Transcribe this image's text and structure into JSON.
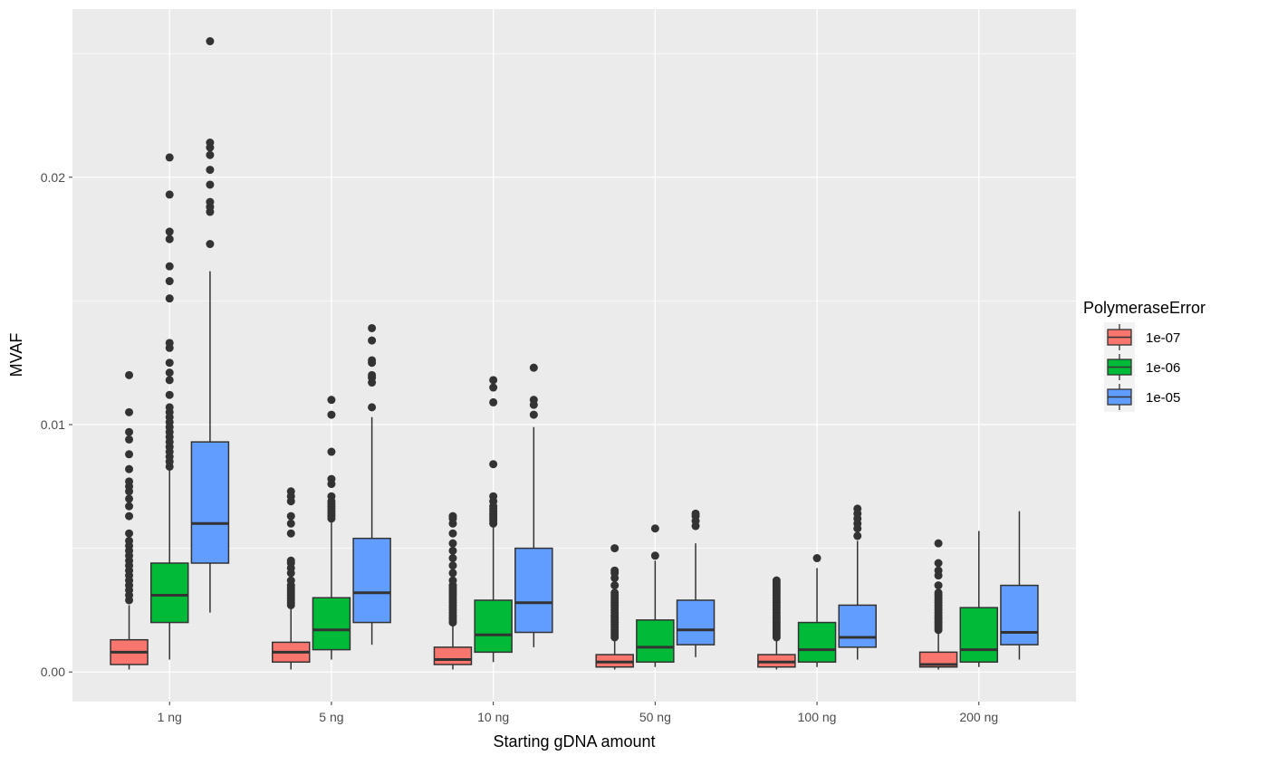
{
  "chart_data": {
    "type": "boxplot",
    "xlabel": "Starting gDNA amount",
    "ylabel": "MVAF",
    "ylim": [
      -0.0012,
      0.0268
    ],
    "yticks": [
      0.0,
      0.01,
      0.02
    ],
    "ytick_labels": [
      "0.00",
      "0.01",
      "0.02"
    ],
    "grid": true,
    "categories": [
      "1 ng",
      "5 ng",
      "10 ng",
      "50 ng",
      "100 ng",
      "200 ng"
    ],
    "legend": {
      "title": "PolymeraseError",
      "placement": "right"
    },
    "series": [
      {
        "name": "1e-07",
        "color": "#F8766D",
        "boxes": [
          {
            "min": 0.0001,
            "q1": 0.0003,
            "median": 0.0008,
            "q3": 0.0013,
            "max": 0.0027,
            "outliers": [
              0.0029,
              0.0031,
              0.0033,
              0.0035,
              0.0037,
              0.0039,
              0.0041,
              0.0043,
              0.0045,
              0.0047,
              0.0049,
              0.0051,
              0.0053,
              0.0056,
              0.0063,
              0.0067,
              0.007,
              0.0073,
              0.0075,
              0.0077,
              0.0082,
              0.0088,
              0.0094,
              0.0097,
              0.0105,
              0.012
            ]
          },
          {
            "min": 0.0001,
            "q1": 0.0004,
            "median": 0.0008,
            "q3": 0.0012,
            "max": 0.0026,
            "outliers": [
              0.0027,
              0.0028,
              0.0029,
              0.003,
              0.0031,
              0.0032,
              0.0033,
              0.0034,
              0.0035,
              0.0037,
              0.004,
              0.0042,
              0.0044,
              0.0045,
              0.0056,
              0.006,
              0.0063,
              0.0069,
              0.0071,
              0.0073
            ]
          },
          {
            "min": 0.0001,
            "q1": 0.0003,
            "median": 0.0005,
            "q3": 0.001,
            "max": 0.0019,
            "outliers": [
              0.002,
              0.0021,
              0.0022,
              0.0023,
              0.0024,
              0.0025,
              0.0026,
              0.0027,
              0.0028,
              0.0029,
              0.003,
              0.0031,
              0.0032,
              0.0033,
              0.0034,
              0.0035,
              0.0037,
              0.004,
              0.0043,
              0.0046,
              0.0049,
              0.0052,
              0.0056,
              0.006,
              0.0062,
              0.0063
            ]
          },
          {
            "min": 0.0001,
            "q1": 0.0002,
            "median": 0.0004,
            "q3": 0.0007,
            "max": 0.0013,
            "outliers": [
              0.0014,
              0.0015,
              0.0016,
              0.0017,
              0.0018,
              0.0019,
              0.002,
              0.0021,
              0.0022,
              0.0023,
              0.0024,
              0.0025,
              0.0026,
              0.0027,
              0.0028,
              0.0029,
              0.003,
              0.0031,
              0.0032,
              0.0035,
              0.0038,
              0.004,
              0.0041,
              0.005
            ]
          },
          {
            "min": 0.0001,
            "q1": 0.0002,
            "median": 0.0004,
            "q3": 0.0007,
            "max": 0.0013,
            "outliers": [
              0.0014,
              0.0015,
              0.0016,
              0.0017,
              0.0018,
              0.0019,
              0.002,
              0.0021,
              0.0022,
              0.0023,
              0.0024,
              0.0025,
              0.0026,
              0.0027,
              0.0028,
              0.0029,
              0.003,
              0.0031,
              0.0032,
              0.0033,
              0.0034,
              0.0035,
              0.0036,
              0.0037
            ]
          },
          {
            "min": 0.0001,
            "q1": 0.0002,
            "median": 0.0003,
            "q3": 0.0008,
            "max": 0.0016,
            "outliers": [
              0.0017,
              0.0018,
              0.0019,
              0.002,
              0.0021,
              0.0022,
              0.0023,
              0.0024,
              0.0025,
              0.0026,
              0.0027,
              0.0028,
              0.0029,
              0.003,
              0.0031,
              0.0032,
              0.0035,
              0.0039,
              0.0041,
              0.0044,
              0.0052
            ]
          }
        ]
      },
      {
        "name": "1e-06",
        "color": "#00BA38",
        "boxes": [
          {
            "min": 0.0005,
            "q1": 0.002,
            "median": 0.0031,
            "q3": 0.0044,
            "max": 0.0083,
            "outliers": [
              0.0083,
              0.0085,
              0.0087,
              0.0089,
              0.0091,
              0.0093,
              0.0095,
              0.0097,
              0.0099,
              0.0101,
              0.0103,
              0.0105,
              0.0107,
              0.0112,
              0.0118,
              0.0121,
              0.0125,
              0.0131,
              0.0133,
              0.0151,
              0.0158,
              0.0164,
              0.0175,
              0.0178,
              0.0193,
              0.0208
            ]
          },
          {
            "min": 0.0005,
            "q1": 0.0009,
            "median": 0.0017,
            "q3": 0.003,
            "max": 0.0061,
            "outliers": [
              0.0062,
              0.0063,
              0.0064,
              0.0065,
              0.0066,
              0.0067,
              0.0068,
              0.0069,
              0.0071,
              0.0076,
              0.0078,
              0.0089,
              0.0104,
              0.011
            ]
          },
          {
            "min": 0.0004,
            "q1": 0.0008,
            "median": 0.0015,
            "q3": 0.0029,
            "max": 0.0059,
            "outliers": [
              0.006,
              0.0061,
              0.0062,
              0.0063,
              0.0064,
              0.0065,
              0.0066,
              0.0067,
              0.0069,
              0.0071,
              0.0084,
              0.0109,
              0.0115,
              0.0118
            ]
          },
          {
            "min": 0.0002,
            "q1": 0.0004,
            "median": 0.001,
            "q3": 0.0021,
            "max": 0.0045,
            "outliers": [
              0.0047,
              0.0058
            ]
          },
          {
            "min": 0.0002,
            "q1": 0.0004,
            "median": 0.0009,
            "q3": 0.002,
            "max": 0.0042,
            "outliers": [
              0.0046
            ]
          },
          {
            "min": 0.0002,
            "q1": 0.0004,
            "median": 0.0009,
            "q3": 0.0026,
            "max": 0.0057,
            "outliers": []
          }
        ]
      },
      {
        "name": "1e-05",
        "color": "#619CFF",
        "boxes": [
          {
            "min": 0.0024,
            "q1": 0.0044,
            "median": 0.006,
            "q3": 0.0093,
            "max": 0.0162,
            "outliers": [
              0.0173,
              0.0186,
              0.0188,
              0.019,
              0.0197,
              0.0203,
              0.0209,
              0.0212,
              0.0214,
              0.0255
            ]
          },
          {
            "min": 0.0011,
            "q1": 0.002,
            "median": 0.0032,
            "q3": 0.0054,
            "max": 0.0103,
            "outliers": [
              0.0107,
              0.0117,
              0.0119,
              0.012,
              0.0125,
              0.0126,
              0.0134,
              0.0139
            ]
          },
          {
            "min": 0.001,
            "q1": 0.0016,
            "median": 0.0028,
            "q3": 0.005,
            "max": 0.0099,
            "outliers": [
              0.0104,
              0.0108,
              0.011,
              0.0123
            ]
          },
          {
            "min": 0.0006,
            "q1": 0.0011,
            "median": 0.0017,
            "q3": 0.0029,
            "max": 0.0052,
            "outliers": [
              0.0059,
              0.0061,
              0.0063,
              0.0064
            ]
          },
          {
            "min": 0.0005,
            "q1": 0.001,
            "median": 0.0014,
            "q3": 0.0027,
            "max": 0.0053,
            "outliers": [
              0.0055,
              0.0058,
              0.006,
              0.0062,
              0.0064,
              0.0066
            ]
          },
          {
            "min": 0.0005,
            "q1": 0.0011,
            "median": 0.0016,
            "q3": 0.0035,
            "max": 0.0065,
            "outliers": []
          }
        ]
      }
    ]
  }
}
